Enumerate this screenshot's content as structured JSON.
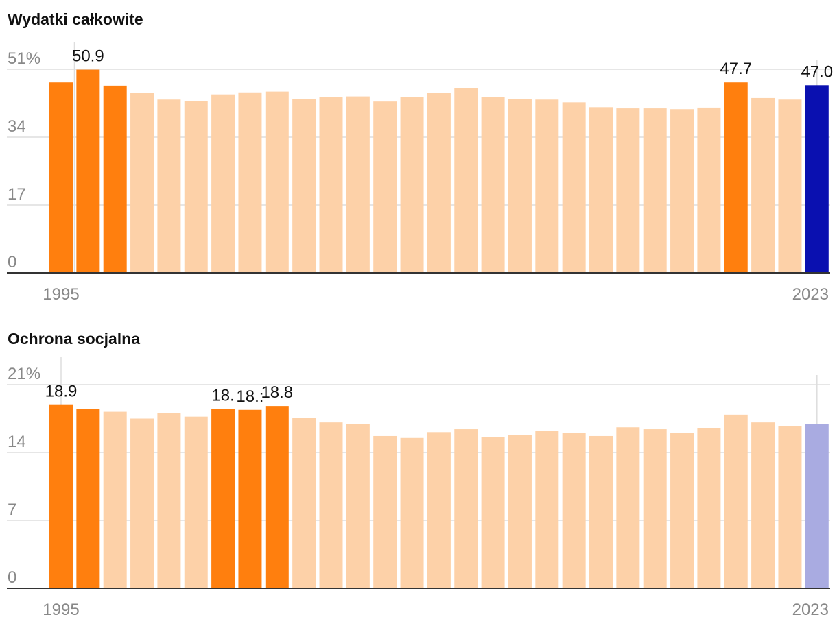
{
  "colors": {
    "highlight": "#ff7f0e",
    "muted": "#fdd1a8",
    "current_total": "#0a10b0",
    "current_social": "#a9abe1",
    "grid": "#dddddd",
    "axis": "#333333"
  },
  "chart_data": [
    {
      "type": "bar",
      "title": "Wydatki całkowite",
      "x": [
        1995,
        1996,
        1997,
        1998,
        1999,
        2000,
        2001,
        2002,
        2003,
        2004,
        2005,
        2006,
        2007,
        2008,
        2009,
        2010,
        2011,
        2012,
        2013,
        2014,
        2015,
        2016,
        2017,
        2018,
        2019,
        2020,
        2021,
        2022,
        2023
      ],
      "values": [
        47.7,
        50.9,
        46.9,
        45.1,
        43.4,
        43.0,
        44.7,
        45.2,
        45.4,
        43.5,
        44.0,
        44.2,
        42.9,
        44.0,
        45.1,
        46.3,
        44.0,
        43.5,
        43.4,
        42.7,
        41.5,
        41.2,
        41.2,
        41.0,
        41.4,
        47.7,
        43.8,
        43.4,
        47.0
      ],
      "highlight": [
        1995,
        1996,
        1997,
        2020
      ],
      "current": 2023,
      "labels": [
        {
          "year": 1996,
          "text": "50.9"
        },
        {
          "year": 2020,
          "text": "47.7"
        },
        {
          "year": 2023,
          "text": "47.0"
        }
      ],
      "yticks": [
        "0",
        "17",
        "34",
        "51%"
      ],
      "tick_values": [
        0,
        17,
        34,
        51
      ],
      "ylim": [
        0,
        51
      ],
      "x_start_label": "1995",
      "x_end_label": "2023"
    },
    {
      "type": "bar",
      "title": "Ochrona socjalna",
      "x": [
        1995,
        1996,
        1997,
        1998,
        1999,
        2000,
        2001,
        2002,
        2003,
        2004,
        2005,
        2006,
        2007,
        2008,
        2009,
        2010,
        2011,
        2012,
        2013,
        2014,
        2015,
        2016,
        2017,
        2018,
        2019,
        2020,
        2021,
        2022,
        2023
      ],
      "values": [
        18.9,
        18.5,
        18.2,
        17.5,
        18.1,
        17.7,
        18.5,
        18.4,
        18.8,
        17.6,
        17.1,
        16.9,
        15.7,
        15.5,
        16.1,
        16.4,
        15.6,
        15.8,
        16.2,
        16.0,
        15.7,
        16.6,
        16.4,
        16.0,
        16.5,
        17.9,
        17.1,
        16.7,
        16.9
      ],
      "highlight": [
        1995,
        1996,
        2001,
        2002,
        2003
      ],
      "current": 2023,
      "labels": [
        {
          "year": 1995,
          "text": "18.9"
        },
        {
          "year": 2001,
          "text": "18."
        },
        {
          "year": 2002,
          "text": "18.:"
        },
        {
          "year": 2003,
          "text": "18.8"
        }
      ],
      "yticks": [
        "0",
        "7",
        "14",
        "21%"
      ],
      "tick_values": [
        0,
        7,
        14,
        21
      ],
      "ylim": [
        0,
        21
      ],
      "x_start_label": "1995",
      "x_end_label": "2023"
    }
  ]
}
